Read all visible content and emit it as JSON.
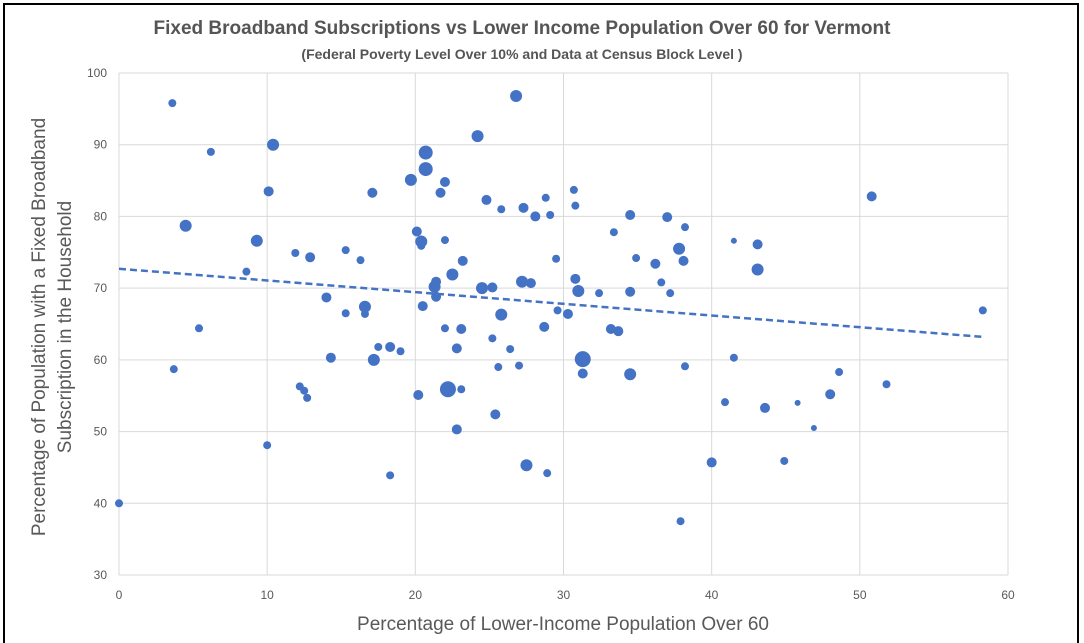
{
  "chart_data": {
    "type": "scatter",
    "title": "Fixed Broadband Subscriptions vs Lower Income Population Over 60 for Vermont",
    "subtitle": "(Federal Poverty Level Over 10% and Data at Census Block Level )",
    "xlabel": "Percentage of Lower-Income Population Over 60",
    "ylabel_line1": "Percentage of Population with a Fixed Broadband",
    "ylabel_line2": "Subscription in the  Household",
    "xlim": [
      0,
      60
    ],
    "ylim": [
      30,
      100
    ],
    "xticks": [
      "0",
      "10",
      "20",
      "30",
      "40",
      "50",
      "60"
    ],
    "yticks": [
      "30",
      "40",
      "50",
      "60",
      "70",
      "80",
      "90",
      "100"
    ],
    "grid": true,
    "marker_color": "#4472C4",
    "trendline": {
      "style": "dashed",
      "color": "#4472C4",
      "x": [
        0,
        58.3
      ],
      "y": [
        72.7,
        63.2
      ]
    },
    "points": [
      {
        "x": 0.0,
        "y": 40.0,
        "s": 4
      },
      {
        "x": 3.6,
        "y": 95.8,
        "s": 4
      },
      {
        "x": 3.7,
        "y": 58.7,
        "s": 4
      },
      {
        "x": 4.5,
        "y": 78.7,
        "s": 6
      },
      {
        "x": 5.4,
        "y": 64.4,
        "s": 4
      },
      {
        "x": 6.2,
        "y": 89.0,
        "s": 4
      },
      {
        "x": 8.6,
        "y": 72.3,
        "s": 4
      },
      {
        "x": 9.3,
        "y": 76.6,
        "s": 6
      },
      {
        "x": 10.0,
        "y": 48.1,
        "s": 4
      },
      {
        "x": 10.1,
        "y": 83.5,
        "s": 5
      },
      {
        "x": 10.4,
        "y": 90.0,
        "s": 6
      },
      {
        "x": 11.9,
        "y": 74.9,
        "s": 4
      },
      {
        "x": 12.2,
        "y": 56.3,
        "s": 4
      },
      {
        "x": 12.5,
        "y": 55.7,
        "s": 4
      },
      {
        "x": 12.7,
        "y": 54.7,
        "s": 4
      },
      {
        "x": 12.9,
        "y": 74.3,
        "s": 5
      },
      {
        "x": 14.0,
        "y": 68.7,
        "s": 5
      },
      {
        "x": 14.3,
        "y": 60.3,
        "s": 5
      },
      {
        "x": 15.3,
        "y": 75.3,
        "s": 4
      },
      {
        "x": 15.3,
        "y": 66.5,
        "s": 4
      },
      {
        "x": 16.3,
        "y": 73.9,
        "s": 4
      },
      {
        "x": 16.6,
        "y": 67.4,
        "s": 6
      },
      {
        "x": 16.6,
        "y": 66.4,
        "s": 4
      },
      {
        "x": 17.1,
        "y": 83.3,
        "s": 5
      },
      {
        "x": 17.2,
        "y": 60.0,
        "s": 6
      },
      {
        "x": 17.5,
        "y": 61.8,
        "s": 4
      },
      {
        "x": 18.3,
        "y": 61.8,
        "s": 5
      },
      {
        "x": 18.3,
        "y": 43.9,
        "s": 4
      },
      {
        "x": 19.0,
        "y": 61.2,
        "s": 4
      },
      {
        "x": 19.7,
        "y": 85.1,
        "s": 6
      },
      {
        "x": 20.1,
        "y": 77.9,
        "s": 5
      },
      {
        "x": 20.2,
        "y": 55.1,
        "s": 5
      },
      {
        "x": 20.4,
        "y": 76.5,
        "s": 6
      },
      {
        "x": 20.4,
        "y": 75.9,
        "s": 4
      },
      {
        "x": 20.5,
        "y": 67.5,
        "s": 5
      },
      {
        "x": 20.7,
        "y": 88.9,
        "s": 7
      },
      {
        "x": 20.7,
        "y": 86.6,
        "s": 7
      },
      {
        "x": 21.3,
        "y": 70.2,
        "s": 6
      },
      {
        "x": 21.4,
        "y": 70.9,
        "s": 5
      },
      {
        "x": 21.4,
        "y": 68.8,
        "s": 5
      },
      {
        "x": 21.7,
        "y": 83.3,
        "s": 5
      },
      {
        "x": 22.0,
        "y": 84.8,
        "s": 5
      },
      {
        "x": 22.0,
        "y": 76.7,
        "s": 4
      },
      {
        "x": 22.0,
        "y": 64.4,
        "s": 4
      },
      {
        "x": 22.2,
        "y": 55.9,
        "s": 8
      },
      {
        "x": 22.5,
        "y": 71.9,
        "s": 6
      },
      {
        "x": 22.8,
        "y": 61.6,
        "s": 5
      },
      {
        "x": 22.8,
        "y": 50.3,
        "s": 5
      },
      {
        "x": 23.1,
        "y": 64.3,
        "s": 5
      },
      {
        "x": 23.1,
        "y": 55.9,
        "s": 4
      },
      {
        "x": 23.2,
        "y": 73.8,
        "s": 5
      },
      {
        "x": 24.2,
        "y": 91.2,
        "s": 6
      },
      {
        "x": 24.5,
        "y": 70.0,
        "s": 6
      },
      {
        "x": 24.8,
        "y": 82.3,
        "s": 5
      },
      {
        "x": 25.2,
        "y": 70.1,
        "s": 5
      },
      {
        "x": 25.2,
        "y": 63.0,
        "s": 4
      },
      {
        "x": 25.4,
        "y": 52.4,
        "s": 5
      },
      {
        "x": 25.6,
        "y": 59.0,
        "s": 4
      },
      {
        "x": 25.8,
        "y": 81.0,
        "s": 4
      },
      {
        "x": 25.8,
        "y": 66.3,
        "s": 6
      },
      {
        "x": 26.4,
        "y": 61.5,
        "s": 4
      },
      {
        "x": 26.8,
        "y": 96.8,
        "s": 6
      },
      {
        "x": 27.0,
        "y": 59.2,
        "s": 4
      },
      {
        "x": 27.2,
        "y": 70.9,
        "s": 6
      },
      {
        "x": 27.3,
        "y": 81.2,
        "s": 5
      },
      {
        "x": 27.5,
        "y": 45.3,
        "s": 6
      },
      {
        "x": 27.8,
        "y": 70.7,
        "s": 5
      },
      {
        "x": 28.1,
        "y": 80.0,
        "s": 5
      },
      {
        "x": 28.7,
        "y": 64.6,
        "s": 5
      },
      {
        "x": 28.8,
        "y": 82.6,
        "s": 4
      },
      {
        "x": 28.9,
        "y": 44.2,
        "s": 4
      },
      {
        "x": 29.1,
        "y": 80.2,
        "s": 4
      },
      {
        "x": 29.5,
        "y": 74.1,
        "s": 4
      },
      {
        "x": 29.6,
        "y": 66.9,
        "s": 4
      },
      {
        "x": 30.3,
        "y": 66.4,
        "s": 5
      },
      {
        "x": 30.7,
        "y": 83.7,
        "s": 4
      },
      {
        "x": 30.8,
        "y": 81.5,
        "s": 4
      },
      {
        "x": 30.8,
        "y": 71.3,
        "s": 5
      },
      {
        "x": 31.0,
        "y": 69.6,
        "s": 6
      },
      {
        "x": 31.3,
        "y": 60.1,
        "s": 8
      },
      {
        "x": 31.3,
        "y": 58.1,
        "s": 5
      },
      {
        "x": 32.4,
        "y": 69.3,
        "s": 4
      },
      {
        "x": 33.2,
        "y": 64.3,
        "s": 5
      },
      {
        "x": 33.4,
        "y": 77.8,
        "s": 4
      },
      {
        "x": 33.7,
        "y": 64.0,
        "s": 5
      },
      {
        "x": 34.5,
        "y": 80.2,
        "s": 5
      },
      {
        "x": 34.5,
        "y": 69.5,
        "s": 5
      },
      {
        "x": 34.5,
        "y": 58.0,
        "s": 6
      },
      {
        "x": 34.9,
        "y": 74.2,
        "s": 4
      },
      {
        "x": 36.2,
        "y": 73.4,
        "s": 5
      },
      {
        "x": 36.6,
        "y": 70.8,
        "s": 4
      },
      {
        "x": 37.0,
        "y": 79.9,
        "s": 5
      },
      {
        "x": 37.2,
        "y": 69.3,
        "s": 4
      },
      {
        "x": 37.8,
        "y": 75.5,
        "s": 6
      },
      {
        "x": 37.9,
        "y": 37.5,
        "s": 4
      },
      {
        "x": 38.1,
        "y": 73.8,
        "s": 5
      },
      {
        "x": 38.2,
        "y": 78.5,
        "s": 4
      },
      {
        "x": 38.2,
        "y": 59.1,
        "s": 4
      },
      {
        "x": 40.0,
        "y": 45.7,
        "s": 5
      },
      {
        "x": 40.9,
        "y": 54.1,
        "s": 4
      },
      {
        "x": 41.5,
        "y": 76.6,
        "s": 3
      },
      {
        "x": 41.5,
        "y": 60.3,
        "s": 4
      },
      {
        "x": 43.1,
        "y": 76.1,
        "s": 5
      },
      {
        "x": 43.1,
        "y": 72.6,
        "s": 6
      },
      {
        "x": 43.6,
        "y": 53.3,
        "s": 5
      },
      {
        "x": 44.9,
        "y": 45.9,
        "s": 4
      },
      {
        "x": 45.8,
        "y": 54.0,
        "s": 3
      },
      {
        "x": 46.9,
        "y": 50.5,
        "s": 3
      },
      {
        "x": 48.0,
        "y": 55.2,
        "s": 5
      },
      {
        "x": 48.6,
        "y": 58.3,
        "s": 4
      },
      {
        "x": 50.8,
        "y": 82.8,
        "s": 5
      },
      {
        "x": 51.8,
        "y": 56.6,
        "s": 4
      },
      {
        "x": 58.3,
        "y": 66.9,
        "s": 4
      }
    ]
  }
}
